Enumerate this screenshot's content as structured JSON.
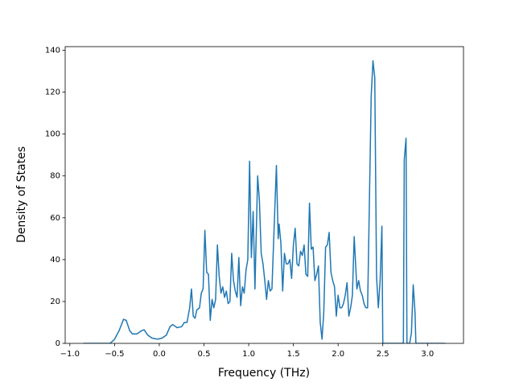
{
  "chart_data": {
    "type": "line",
    "xlabel": "Frequency (THz)",
    "ylabel": "Density of States",
    "x": [
      -0.85,
      -0.55,
      -0.5,
      -0.45,
      -0.4,
      -0.37,
      -0.33,
      -0.3,
      -0.25,
      -0.2,
      -0.17,
      -0.13,
      -0.08,
      -0.02,
      0.03,
      0.08,
      0.12,
      0.15,
      0.2,
      0.25,
      0.28,
      0.31,
      0.34,
      0.36,
      0.38,
      0.4,
      0.42,
      0.45,
      0.47,
      0.49,
      0.51,
      0.53,
      0.55,
      0.57,
      0.59,
      0.61,
      0.63,
      0.65,
      0.67,
      0.69,
      0.71,
      0.73,
      0.75,
      0.77,
      0.79,
      0.81,
      0.83,
      0.85,
      0.87,
      0.89,
      0.91,
      0.93,
      0.95,
      0.97,
      0.99,
      1.01,
      1.03,
      1.05,
      1.07,
      1.1,
      1.12,
      1.14,
      1.16,
      1.18,
      1.2,
      1.22,
      1.24,
      1.26,
      1.28,
      1.31,
      1.33,
      1.34,
      1.36,
      1.38,
      1.4,
      1.42,
      1.44,
      1.46,
      1.48,
      1.5,
      1.52,
      1.54,
      1.56,
      1.58,
      1.6,
      1.62,
      1.64,
      1.66,
      1.68,
      1.7,
      1.72,
      1.74,
      1.76,
      1.78,
      1.8,
      1.82,
      1.84,
      1.86,
      1.88,
      1.9,
      1.92,
      1.94,
      1.96,
      1.98,
      2.0,
      2.02,
      2.04,
      2.06,
      2.08,
      2.1,
      2.12,
      2.14,
      2.16,
      2.18,
      2.21,
      2.23,
      2.25,
      2.27,
      2.29,
      2.31,
      2.33,
      2.37,
      2.39,
      2.41,
      2.43,
      2.45,
      2.47,
      2.49,
      2.5,
      2.73,
      2.74,
      2.76,
      2.77,
      2.8,
      2.82,
      2.84,
      2.86,
      2.87,
      3.2
    ],
    "series": [
      {
        "name": "DOS",
        "color": "#1f77b4",
        "values": [
          0,
          0,
          2,
          6,
          11.5,
          11,
          6,
          4.5,
          4.5,
          6,
          6.5,
          4,
          2.5,
          2,
          2.5,
          4,
          8,
          9,
          7.5,
          8,
          10,
          10,
          17,
          26,
          13,
          12,
          16,
          17,
          24,
          26,
          54,
          34,
          33,
          11,
          21,
          17,
          21,
          47,
          32,
          24,
          27,
          22,
          25,
          19,
          20,
          43,
          30,
          25,
          22,
          41,
          18,
          27,
          24,
          35,
          40,
          87,
          41,
          63,
          26,
          80,
          68,
          43,
          38,
          30,
          21,
          30,
          25,
          26,
          50,
          85,
          50,
          57,
          48,
          25,
          43,
          38,
          38,
          40,
          31,
          47,
          55,
          38,
          37,
          44,
          42,
          47,
          33,
          32,
          67,
          45,
          46,
          30,
          33,
          37,
          10,
          2,
          15,
          46,
          47,
          53,
          34,
          30,
          27,
          13,
          23,
          17,
          17,
          19,
          23,
          29,
          13,
          17,
          23,
          51,
          26,
          30,
          25,
          23,
          19,
          17,
          17,
          118,
          135,
          127,
          32,
          17,
          30,
          56,
          0,
          0,
          88,
          98,
          0,
          0,
          5,
          28,
          15,
          0,
          0
        ]
      }
    ],
    "xlim": [
      -1.0525,
      3.4025
    ],
    "ylim": [
      0,
      141.75
    ],
    "xticks": [
      {
        "value": -1,
        "label": "−1.0"
      },
      {
        "value": -0.5,
        "label": "−0.5"
      },
      {
        "value": 0,
        "label": "0.0"
      },
      0.5,
      {
        "value": 1,
        "label": "1.0"
      },
      1.5,
      {
        "value": 2,
        "label": "2.0"
      },
      2.5,
      {
        "value": 3,
        "label": "3.0"
      }
    ],
    "yticks": [
      0,
      20,
      40,
      60,
      80,
      100,
      120,
      140
    ]
  }
}
